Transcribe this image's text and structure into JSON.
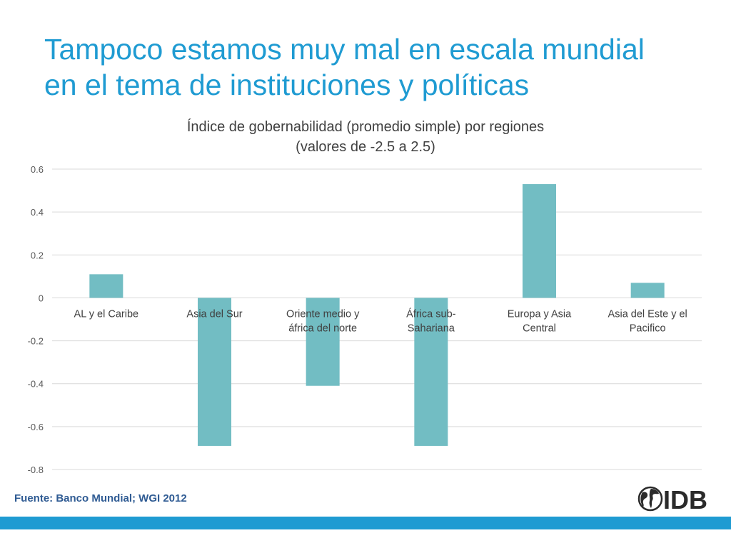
{
  "slide": {
    "title_line1": "Tampoco estamos muy mal en escala mundial",
    "title_line2": "en el tema de instituciones y políticas",
    "source": "Fuente: Banco Mundial; WGI 2012",
    "logo_text": "IDB"
  },
  "colors": {
    "title": "#1f9bd2",
    "bar": "#72bdc3",
    "footer_bar": "#1f9bd2",
    "source": "#2f5b93",
    "grid": "#d9d9d9"
  },
  "chart_data": {
    "type": "bar",
    "title_line1": "Índice de gobernabilidad (promedio simple) por regiones",
    "title_line2": "(valores de -2.5 a 2.5)",
    "categories": [
      [
        "AL y el Caribe"
      ],
      [
        "Asia del Sur"
      ],
      [
        "Oriente medio y",
        "áfrica del norte"
      ],
      [
        "África sub-",
        "Sahariana"
      ],
      [
        "Europa y Asia",
        "Central"
      ],
      [
        "Asia del Este y el",
        "Pacifico"
      ]
    ],
    "values": [
      0.11,
      -0.69,
      -0.41,
      -0.69,
      0.53,
      0.07
    ],
    "ylim": [
      -0.8,
      0.6
    ],
    "yticks": [
      0.6,
      0.4,
      0.2,
      0,
      -0.2,
      -0.4,
      -0.6,
      -0.8
    ],
    "ytick_labels": [
      "0.6",
      "0.4",
      "0.2",
      "0",
      "-0.2",
      "-0.4",
      "-0.6",
      "-0.8"
    ],
    "grid": true,
    "legend": "none",
    "xlabel": "",
    "ylabel": ""
  }
}
